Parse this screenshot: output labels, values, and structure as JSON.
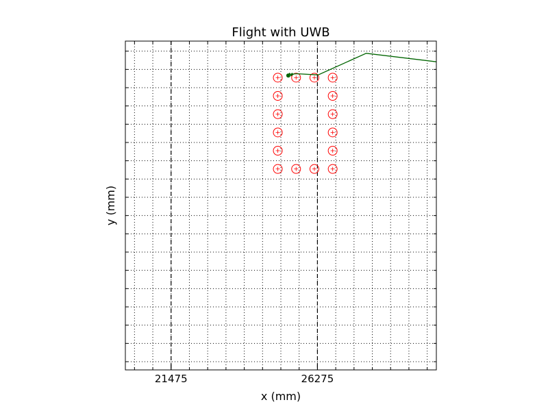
{
  "chart_data": {
    "type": "scatter",
    "title": "Flight with UWB",
    "xlabel": "x (mm)",
    "ylabel": "y (mm)",
    "xlim": [
      19975,
      30175
    ],
    "ylim": [
      -6870,
      3930
    ],
    "x_ticks": [
      21475,
      26275
    ],
    "x_tick_labels": [
      "21475",
      "26275"
    ],
    "grid": true,
    "grid_style": "dotted",
    "x_grid_step": 600,
    "y_grid_step": 600,
    "vertical_lines": [
      {
        "x": 21475,
        "style": "dashed",
        "color": "#000000"
      },
      {
        "x": 26275,
        "style": "dashed",
        "color": "#000000"
      }
    ],
    "series": [
      {
        "kind": "markers",
        "marker": "circle-plus",
        "color": "#ff0000",
        "points": [
          [
            24975,
            2730
          ],
          [
            25575,
            2730
          ],
          [
            26175,
            2730
          ],
          [
            26775,
            2730
          ],
          [
            24975,
            2130
          ],
          [
            26775,
            2130
          ],
          [
            24975,
            1530
          ],
          [
            26775,
            1530
          ],
          [
            24975,
            930
          ],
          [
            26775,
            930
          ],
          [
            24975,
            330
          ],
          [
            26775,
            330
          ],
          [
            24975,
            -270
          ],
          [
            25575,
            -270
          ],
          [
            26175,
            -270
          ],
          [
            26775,
            -270
          ]
        ]
      },
      {
        "kind": "line",
        "color": "#006400",
        "points": [
          [
            25320,
            2800
          ],
          [
            25360,
            2870
          ],
          [
            25400,
            2830
          ],
          [
            25450,
            2880
          ],
          [
            25400,
            2780
          ],
          [
            25480,
            2860
          ],
          [
            25430,
            2810
          ],
          [
            25500,
            2850
          ],
          [
            25600,
            2860
          ],
          [
            26300,
            2820
          ],
          [
            27875,
            3530
          ],
          [
            30175,
            3250
          ]
        ]
      }
    ]
  }
}
